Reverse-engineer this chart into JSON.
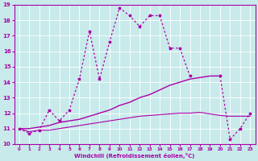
{
  "x": [
    0,
    1,
    2,
    3,
    4,
    5,
    6,
    7,
    8,
    9,
    10,
    11,
    12,
    13,
    14,
    15,
    16,
    17,
    18,
    19,
    20,
    21,
    22,
    23
  ],
  "line1_seg1": {
    "x": [
      0,
      1,
      2,
      3,
      4,
      5,
      6,
      7,
      8,
      9,
      10,
      11,
      12,
      13,
      14,
      15,
      16,
      17
    ],
    "y": [
      11.0,
      10.7,
      10.9,
      12.2,
      11.5,
      12.2,
      14.2,
      17.3,
      14.2,
      16.6,
      18.8,
      18.3,
      17.6,
      18.3,
      18.3,
      16.2,
      16.2,
      14.4
    ]
  },
  "line1_seg2": {
    "x": [
      20,
      21,
      22,
      23
    ],
    "y": [
      14.4,
      10.3,
      11.0,
      12.0
    ]
  },
  "line2": {
    "x": [
      0,
      1,
      2,
      3,
      4,
      5,
      6,
      7,
      8,
      9,
      10,
      11,
      12,
      13,
      14,
      15,
      16,
      17,
      18,
      19,
      20
    ],
    "y": [
      11.0,
      11.0,
      11.1,
      11.2,
      11.4,
      11.5,
      11.6,
      11.8,
      12.0,
      12.2,
      12.5,
      12.7,
      13.0,
      13.2,
      13.5,
      13.8,
      14.0,
      14.2,
      14.3,
      14.4,
      14.4
    ]
  },
  "line3": {
    "x": [
      0,
      1,
      2,
      3,
      4,
      5,
      6,
      7,
      8,
      9,
      10,
      11,
      12,
      13,
      14,
      15,
      16,
      17,
      18,
      19,
      20,
      21,
      22,
      23
    ],
    "y": [
      11.0,
      10.8,
      10.9,
      10.9,
      11.0,
      11.1,
      11.2,
      11.3,
      11.4,
      11.5,
      11.6,
      11.7,
      11.8,
      11.85,
      11.9,
      11.95,
      12.0,
      12.0,
      12.05,
      11.95,
      11.85,
      11.8,
      11.8,
      11.8
    ]
  },
  "line_color": "#aa00aa",
  "bg_color": "#c8eaea",
  "plot_bg": "#c8eaea",
  "xlabel": "Windchill (Refroidissement éolien,°C)",
  "xlim": [
    -0.5,
    23.5
  ],
  "ylim": [
    10,
    19
  ],
  "yticks": [
    10,
    11,
    12,
    13,
    14,
    15,
    16,
    17,
    18,
    19
  ],
  "xticks": [
    0,
    1,
    2,
    3,
    4,
    5,
    6,
    7,
    8,
    9,
    10,
    11,
    12,
    13,
    14,
    15,
    16,
    17,
    18,
    19,
    20,
    21,
    22,
    23
  ]
}
